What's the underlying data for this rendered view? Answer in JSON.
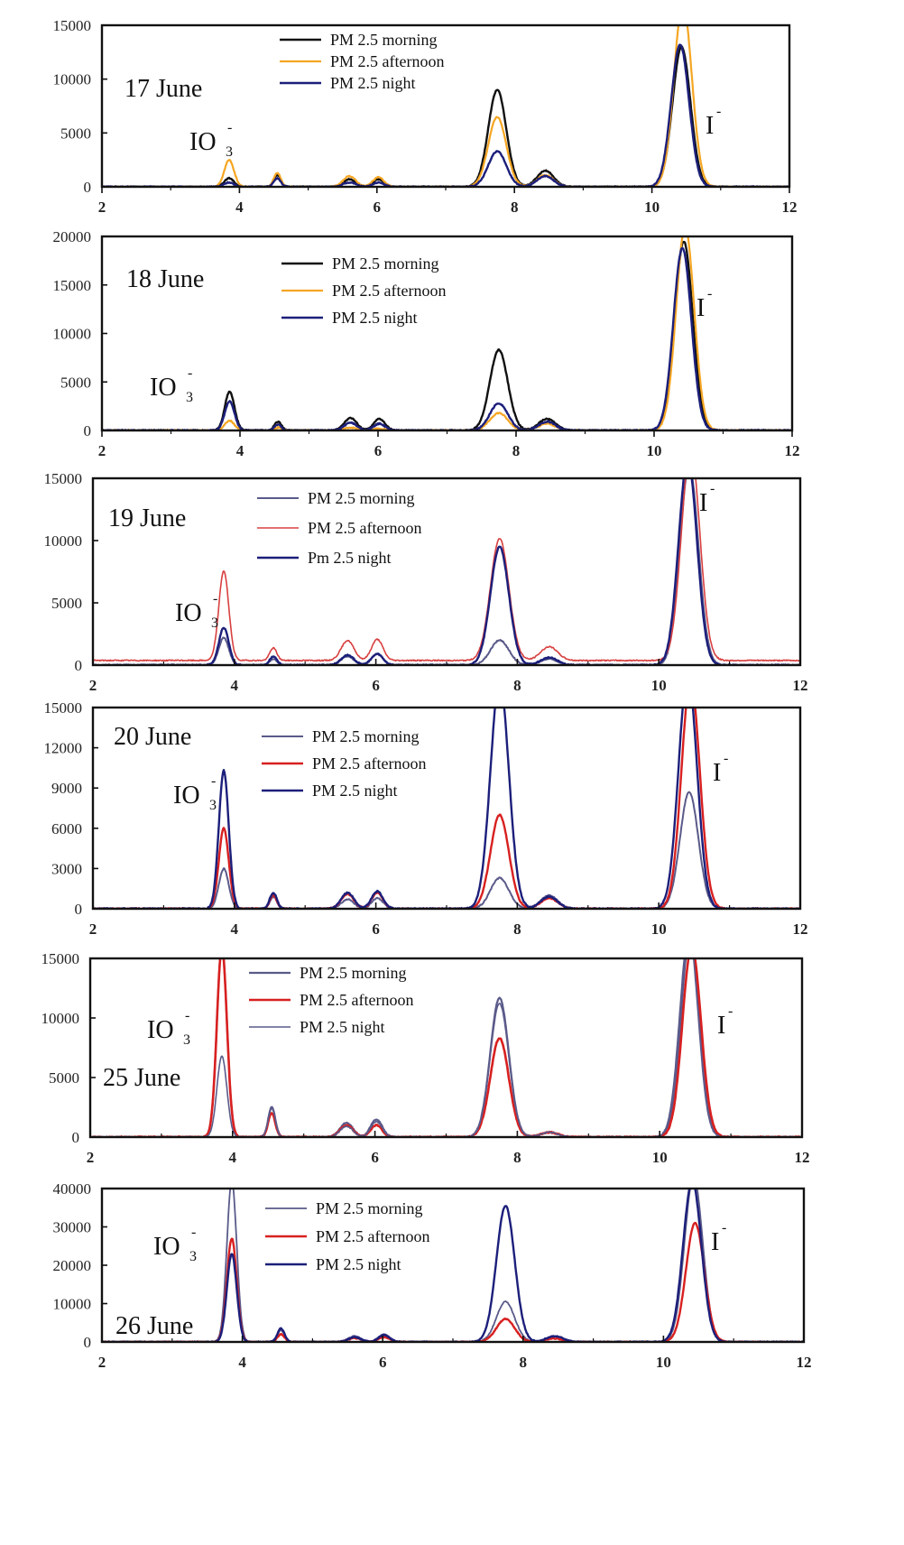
{
  "colors": {
    "morning_black": "#111111",
    "afternoon_orange": "#f5a623",
    "night_navy": "#1c1f7a",
    "morning_slate": "#5a5a8a",
    "afternoon_red": "#d82020",
    "afternoon_red_thin": "#d84040"
  },
  "chart_data": [
    {
      "type": "line",
      "date_label": "17 June",
      "xlim": [
        2,
        12
      ],
      "ylim": [
        0,
        15000
      ],
      "x_ticks": [
        "2",
        "4",
        "6",
        "8",
        "10",
        "12"
      ],
      "y_ticks": [
        "0",
        "5000",
        "10000",
        "15000"
      ],
      "annotations": [
        {
          "text": "IO",
          "sub": "3",
          "sup": "-"
        },
        {
          "text": "I",
          "sup": "-"
        }
      ],
      "series": [
        {
          "name": "PM 2.5 morning",
          "peaks": {
            "IO3": 800,
            "p4_5": 1100,
            "p5_6": 700,
            "p6_0": 700,
            "p7_75": 9000,
            "p8_4": 1500,
            "I": 13000
          }
        },
        {
          "name": "PM 2.5 afternoon",
          "peaks": {
            "IO3": 2500,
            "p4_5": 1300,
            "p5_6": 1000,
            "p6_0": 900,
            "p7_75": 6500,
            "p8_4": 1100,
            "I": 17000
          }
        },
        {
          "name": "PM 2.5 night",
          "peaks": {
            "IO3": 400,
            "p4_5": 800,
            "p5_6": 400,
            "p6_0": 400,
            "p7_75": 3300,
            "p8_4": 1000,
            "I": 13200
          }
        }
      ]
    },
    {
      "type": "line",
      "date_label": "18 June",
      "xlim": [
        2,
        12
      ],
      "ylim": [
        0,
        20000
      ],
      "x_ticks": [
        "2",
        "4",
        "6",
        "8",
        "10",
        "12"
      ],
      "y_ticks": [
        "0",
        "5000",
        "10000",
        "15000",
        "20000"
      ],
      "annotations": [
        {
          "text": "IO",
          "sub": "3",
          "sup": "-"
        },
        {
          "text": "I",
          "sup": "-"
        }
      ],
      "series": [
        {
          "name": "PM 2.5 morning",
          "peaks": {
            "IO3": 4000,
            "p4_5": 900,
            "p5_6": 1300,
            "p6_0": 1200,
            "p7_75": 8300,
            "p8_4": 1200,
            "I": 19500
          }
        },
        {
          "name": "PM 2.5 afternoon",
          "peaks": {
            "IO3": 1000,
            "p4_5": 300,
            "p5_6": 300,
            "p6_0": 200,
            "p7_75": 1800,
            "p8_4": 700,
            "I": 21000
          }
        },
        {
          "name": "PM 2.5 night",
          "peaks": {
            "IO3": 3000,
            "p4_5": 600,
            "p5_6": 800,
            "p6_0": 700,
            "p7_75": 2800,
            "p8_4": 900,
            "I": 18800
          }
        }
      ]
    },
    {
      "type": "line",
      "date_label": "19  June",
      "xlim": [
        2,
        12
      ],
      "ylim": [
        0,
        15000
      ],
      "x_ticks": [
        "2",
        "4",
        "6",
        "8",
        "10",
        "12"
      ],
      "y_ticks": [
        "0",
        "5000",
        "10000",
        "15000"
      ],
      "annotations": [
        {
          "text": "IO",
          "sub": "3",
          "sup": "-"
        },
        {
          "text": "I",
          "sup": "-"
        }
      ],
      "series": [
        {
          "name": "PM 2.5 morning",
          "peaks": {
            "IO3": 2200,
            "p4_5": 500,
            "p5_6": 700,
            "p6_0": 900,
            "p7_75": 2000,
            "p8_4": 500,
            "I": 16000
          }
        },
        {
          "name": "PM 2.5 afternoon",
          "peaks": {
            "IO3": 7200,
            "p4_5": 1000,
            "p5_6": 1600,
            "p6_0": 1700,
            "p7_75": 9800,
            "p8_4": 1100,
            "I": 17000
          }
        },
        {
          "name": "Pm 2.5 night",
          "peaks": {
            "IO3": 3000,
            "p4_5": 700,
            "p5_6": 800,
            "p6_0": 900,
            "p7_75": 9500,
            "p8_4": 600,
            "I": 16500
          }
        }
      ]
    },
    {
      "type": "line",
      "date_label": "20 June",
      "xlim": [
        2,
        12
      ],
      "ylim": [
        0,
        15000
      ],
      "x_ticks": [
        "2",
        "4",
        "6",
        "8",
        "10",
        "12"
      ],
      "y_ticks": [
        "0",
        "3000",
        "6000",
        "9000",
        "12000",
        "15000"
      ],
      "annotations": [
        {
          "text": "IO",
          "sub": "3",
          "sup": "-"
        },
        {
          "text": "I",
          "sup": "-"
        }
      ],
      "series": [
        {
          "name": "PM 2.5 morning",
          "peaks": {
            "IO3": 3000,
            "p4_5": 900,
            "p5_6": 700,
            "p6_0": 800,
            "p7_75": 2300,
            "p8_4": 1000,
            "I": 8700
          }
        },
        {
          "name": "PM 2.5 afternoon",
          "peaks": {
            "IO3": 6000,
            "p4_5": 1000,
            "p5_6": 1100,
            "p6_0": 1200,
            "p7_75": 7000,
            "p8_4": 800,
            "I": 17000
          }
        },
        {
          "name": "PM 2.5 night",
          "peaks": {
            "IO3": 10300,
            "p4_5": 1200,
            "p5_6": 1200,
            "p6_0": 1300,
            "p7_75": 17000,
            "p8_4": 900,
            "I": 17500
          }
        }
      ]
    },
    {
      "type": "line",
      "date_label": "25 June",
      "xlim": [
        2,
        12
      ],
      "ylim": [
        0,
        15000
      ],
      "x_ticks": [
        "2",
        "4",
        "6",
        "8",
        "10",
        "12"
      ],
      "y_ticks": [
        "0",
        "5000",
        "10000",
        "15000"
      ],
      "annotations": [
        {
          "text": "IO",
          "sub": "3",
          "sup": "-"
        },
        {
          "text": "I",
          "sup": "-"
        }
      ],
      "series": [
        {
          "name": "PM 2.5 morning",
          "peaks": {
            "IO3": 16000,
            "p4_5": 2500,
            "p5_6": 1200,
            "p6_0": 1500,
            "p7_75": 11700,
            "p8_4": 400,
            "I": 17000
          }
        },
        {
          "name": "PM 2.5 afternoon",
          "peaks": {
            "IO3": 16000,
            "p4_5": 2000,
            "p5_6": 1000,
            "p6_0": 1000,
            "p7_75": 8300,
            "p8_4": 400,
            "I": 16000
          }
        },
        {
          "name": "PM 2.5 night",
          "peaks": {
            "IO3": 6800,
            "p4_5": 2400,
            "p5_6": 900,
            "p6_0": 1300,
            "p7_75": 11200,
            "p8_4": 400,
            "I": 17000
          }
        }
      ]
    },
    {
      "type": "line",
      "date_label": "26 June",
      "xlim": [
        2,
        12
      ],
      "ylim": [
        0,
        40000
      ],
      "x_ticks": [
        "2",
        "4",
        "6",
        "8",
        "10",
        "12"
      ],
      "y_ticks": [
        "0",
        "10000",
        "20000",
        "30000",
        "40000"
      ],
      "annotations": [
        {
          "text": "IO",
          "sub": "3",
          "sup": "-"
        },
        {
          "text": "I",
          "sup": "-"
        }
      ],
      "series": [
        {
          "name": "PM 2.5 morning",
          "peaks": {
            "IO3": 42000,
            "p4_5": 3000,
            "p5_6": 1500,
            "p6_0": 2000,
            "p7_75": 10500,
            "p8_4": 1500,
            "I": 43000
          }
        },
        {
          "name": "PM 2.5 afternoon",
          "peaks": {
            "IO3": 27000,
            "p4_5": 2000,
            "p5_6": 1000,
            "p6_0": 1200,
            "p7_75": 6000,
            "p8_4": 900,
            "I": 31000
          }
        },
        {
          "name": "PM 2.5 night",
          "peaks": {
            "IO3": 23000,
            "p4_5": 3500,
            "p5_6": 1200,
            "p6_0": 1800,
            "p7_75": 35500,
            "p8_4": 1500,
            "I": 42000
          }
        }
      ]
    }
  ]
}
